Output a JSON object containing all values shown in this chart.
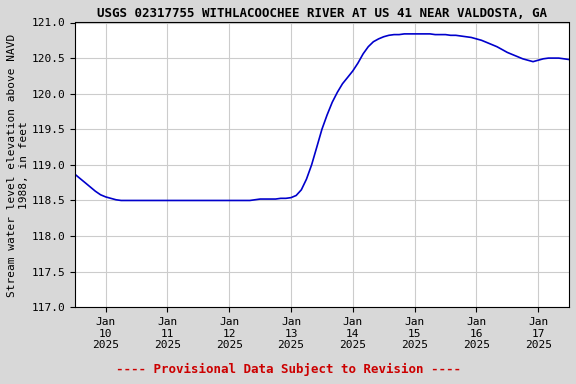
{
  "title": "USGS 02317755 WITHLACOOCHEE RIVER AT US 41 NEAR VALDOSTA, GA",
  "ylabel": "Stream water level elevation above NAVD\n1988, in feet",
  "xlabel_ticks": [
    "Jan\n10\n2025",
    "Jan\n11\n2025",
    "Jan\n12\n2025",
    "Jan\n13\n2025",
    "Jan\n14\n2025",
    "Jan\n15\n2025",
    "Jan\n16\n2025",
    "Jan\n17\n2025"
  ],
  "xtick_positions": [
    10,
    11,
    12,
    13,
    14,
    15,
    16,
    17
  ],
  "xlim": [
    9.5,
    17.5
  ],
  "ylim": [
    117.0,
    121.0
  ],
  "yticks": [
    117.0,
    117.5,
    118.0,
    118.5,
    119.0,
    119.5,
    120.0,
    120.5,
    121.0
  ],
  "line_color": "#0000cc",
  "line_width": 1.2,
  "grid_color": "#cccccc",
  "background_color": "#d8d8d8",
  "plot_bg_color": "#ffffff",
  "title_fontsize": 9,
  "axis_label_fontsize": 8,
  "tick_fontsize": 8,
  "provisional_text": "---- Provisional Data Subject to Revision ----",
  "provisional_color": "#cc0000",
  "provisional_fontsize": 9,
  "x_data": [
    9.5,
    9.583,
    9.667,
    9.75,
    9.833,
    9.917,
    10.0,
    10.083,
    10.167,
    10.25,
    10.333,
    10.417,
    10.5,
    10.583,
    10.667,
    10.75,
    10.833,
    10.917,
    11.0,
    11.083,
    11.167,
    11.25,
    11.333,
    11.417,
    11.5,
    11.583,
    11.667,
    11.75,
    11.833,
    11.917,
    12.0,
    12.083,
    12.167,
    12.25,
    12.333,
    12.417,
    12.5,
    12.583,
    12.667,
    12.75,
    12.833,
    12.917,
    13.0,
    13.083,
    13.167,
    13.25,
    13.333,
    13.417,
    13.5,
    13.583,
    13.667,
    13.75,
    13.833,
    13.917,
    14.0,
    14.083,
    14.167,
    14.25,
    14.333,
    14.417,
    14.5,
    14.583,
    14.667,
    14.75,
    14.833,
    14.917,
    15.0,
    15.083,
    15.167,
    15.25,
    15.333,
    15.417,
    15.5,
    15.583,
    15.667,
    15.75,
    15.833,
    15.917,
    16.0,
    16.083,
    16.167,
    16.25,
    16.333,
    16.417,
    16.5,
    16.583,
    16.667,
    16.75,
    16.833,
    16.917,
    17.0,
    17.083,
    17.167,
    17.25,
    17.333,
    17.417,
    17.5
  ],
  "y_data": [
    118.87,
    118.81,
    118.75,
    118.69,
    118.63,
    118.58,
    118.55,
    118.53,
    118.51,
    118.5,
    118.5,
    118.5,
    118.5,
    118.5,
    118.5,
    118.5,
    118.5,
    118.5,
    118.5,
    118.5,
    118.5,
    118.5,
    118.5,
    118.5,
    118.5,
    118.5,
    118.5,
    118.5,
    118.5,
    118.5,
    118.5,
    118.5,
    118.5,
    118.5,
    118.5,
    118.51,
    118.52,
    118.52,
    118.52,
    118.52,
    118.53,
    118.53,
    118.54,
    118.57,
    118.65,
    118.8,
    119.0,
    119.25,
    119.5,
    119.7,
    119.88,
    120.02,
    120.14,
    120.23,
    120.32,
    120.43,
    120.56,
    120.66,
    120.73,
    120.77,
    120.8,
    120.82,
    120.83,
    120.83,
    120.84,
    120.84,
    120.84,
    120.84,
    120.84,
    120.84,
    120.83,
    120.83,
    120.83,
    120.82,
    120.82,
    120.81,
    120.8,
    120.79,
    120.77,
    120.75,
    120.72,
    120.69,
    120.66,
    120.62,
    120.58,
    120.55,
    120.52,
    120.49,
    120.47,
    120.45,
    120.47,
    120.49,
    120.5,
    120.5,
    120.5,
    120.49,
    120.48
  ]
}
